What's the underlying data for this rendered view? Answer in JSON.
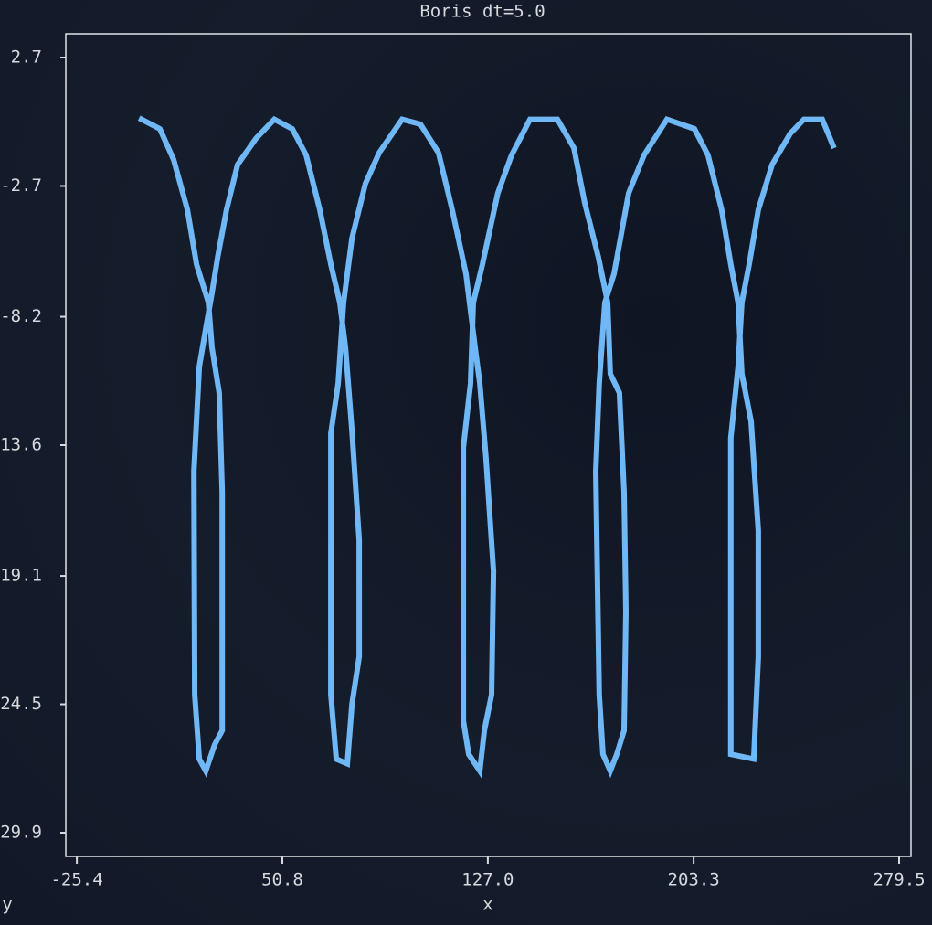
{
  "chart_data": {
    "type": "line",
    "title": "Boris dt=5.0",
    "xlabel": "x",
    "ylabel": "y",
    "color": "#6fb8f5",
    "x": [
      -1.4,
      5.4,
      10.5,
      15.6,
      19.0,
      23.4,
      24.7,
      27.4,
      28.5,
      28.5,
      25.7,
      22.4,
      20.0,
      18.3,
      18.0,
      20.0,
      22.4,
      24.7,
      26.8,
      30.1,
      34.2,
      41.0,
      47.8,
      54.5,
      59.6,
      64.7,
      68.8,
      72.1,
      74.2,
      76.6,
      79.3,
      79.3,
      76.6,
      74.9,
      70.8,
      68.8,
      68.8,
      71.5,
      73.5,
      76.6,
      81.6,
      86.7,
      95.2,
      102.0,
      108.7,
      113.8,
      118.9,
      122.3,
      124.0,
      126.3,
      129.1,
      128.4,
      125.7,
      124.0,
      119.9,
      117.9,
      117.9,
      120.6,
      121.6,
      125.0,
      130.7,
      135.8,
      142.6,
      152.8,
      158.9,
      162.9,
      168.0,
      171.4,
      172.4,
      175.8,
      177.5,
      178.2,
      177.5,
      174.8,
      172.4,
      169.7,
      168.3,
      167.0,
      168.3,
      170.4,
      173.8,
      179.2,
      184.9,
      193.4,
      203.6,
      208.6,
      213.7,
      217.1,
      219.8,
      221.2,
      224.6,
      227.3,
      227.3,
      225.6,
      217.1,
      217.1,
      219.8,
      221.2,
      223.9,
      227.3,
      232.4,
      239.1,
      244.2,
      251.0,
      255.0
    ],
    "values": [
      0.1,
      -0.3,
      -1.6,
      -3.7,
      -6.0,
      -7.6,
      -9.5,
      -11.4,
      -15.6,
      -25.6,
      -26.2,
      -27.3,
      -26.8,
      -24.1,
      -14.7,
      -10.3,
      -8.7,
      -7.2,
      -5.7,
      -3.7,
      -1.8,
      -0.7,
      0.1,
      -0.3,
      -1.4,
      -3.7,
      -6.0,
      -7.6,
      -9.5,
      -13.0,
      -17.6,
      -22.5,
      -24.5,
      -27.0,
      -26.8,
      -24.1,
      -13.1,
      -11.0,
      -7.6,
      -4.9,
      -2.6,
      -1.3,
      0.1,
      -0.1,
      -1.3,
      -3.7,
      -6.4,
      -9.5,
      -11.0,
      -14.1,
      -18.9,
      -24.1,
      -25.6,
      -27.3,
      -26.6,
      -25.2,
      -13.7,
      -11.0,
      -7.6,
      -6.0,
      -3.0,
      -1.4,
      0.1,
      0.1,
      -1.1,
      -3.4,
      -5.7,
      -7.6,
      -10.6,
      -11.4,
      -15.6,
      -20.6,
      -25.6,
      -26.6,
      -27.3,
      -26.6,
      -24.1,
      -14.7,
      -11.0,
      -7.6,
      -6.4,
      -3.0,
      -1.4,
      0.1,
      -0.3,
      -1.4,
      -3.7,
      -6.0,
      -7.6,
      -10.6,
      -12.6,
      -17.2,
      -22.5,
      -26.8,
      -26.6,
      -13.3,
      -10.3,
      -7.6,
      -6.0,
      -3.7,
      -1.8,
      -0.5,
      0.1,
      0.1,
      -1.0
    ],
    "xlim": [
      -29.5,
      283.9
    ],
    "ylim": [
      -30.9,
      3.7
    ],
    "xticks": [
      -25.4,
      50.8,
      {
        "value": 127,
        "label": "127.0"
      },
      203.3,
      279.5
    ],
    "yticks": [
      2.7,
      -2.7,
      -8.2,
      -13.6,
      -19.1,
      -24.5,
      -29.9
    ]
  }
}
